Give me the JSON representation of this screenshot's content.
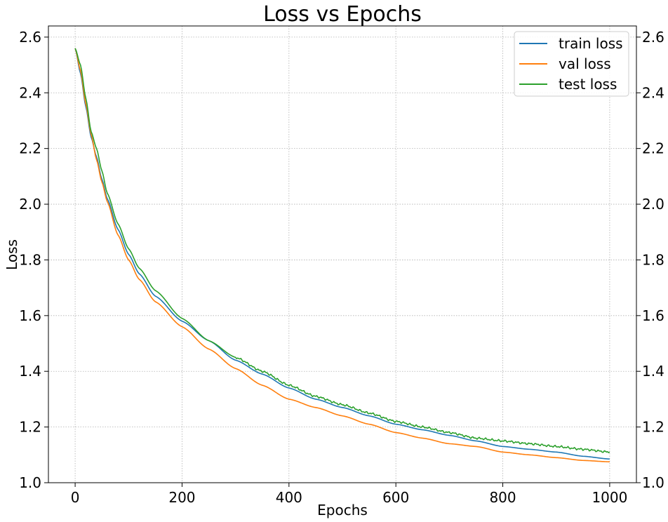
{
  "chart_data": {
    "type": "line",
    "title": "Loss vs Epochs",
    "xlabel": "Epochs",
    "ylabel": "Loss",
    "xlim": [
      -50,
      1050
    ],
    "ylim": [
      1.0,
      2.64
    ],
    "xticks": [
      0,
      200,
      400,
      600,
      800,
      1000
    ],
    "yticks": [
      1.0,
      1.2,
      1.4,
      1.6,
      1.8,
      2.0,
      2.2,
      2.4,
      2.6
    ],
    "ytick_labels": [
      "1.0",
      "1.2",
      "1.4",
      "1.6",
      "1.8",
      "2.0",
      "2.2",
      "2.4",
      "2.6"
    ],
    "right_axis_mirror": true,
    "grid": true,
    "legend_position": "top-right",
    "series": [
      {
        "name": "train loss",
        "color": "#1f77b4",
        "x": [
          0,
          10,
          20,
          30,
          40,
          50,
          60,
          80,
          100,
          120,
          150,
          200,
          250,
          300,
          350,
          400,
          450,
          500,
          550,
          600,
          650,
          700,
          750,
          800,
          850,
          900,
          950,
          1000
        ],
        "values": [
          2.56,
          2.47,
          2.35,
          2.24,
          2.17,
          2.09,
          2.02,
          1.91,
          1.82,
          1.75,
          1.67,
          1.58,
          1.51,
          1.44,
          1.39,
          1.34,
          1.3,
          1.27,
          1.24,
          1.21,
          1.19,
          1.17,
          1.15,
          1.13,
          1.12,
          1.11,
          1.095,
          1.085
        ]
      },
      {
        "name": "val loss",
        "color": "#ff7f0e",
        "x": [
          0,
          10,
          20,
          30,
          40,
          50,
          60,
          80,
          100,
          120,
          150,
          200,
          250,
          300,
          350,
          400,
          450,
          500,
          550,
          600,
          650,
          700,
          750,
          800,
          850,
          900,
          950,
          1000
        ],
        "values": [
          2.56,
          2.48,
          2.36,
          2.25,
          2.16,
          2.08,
          2.01,
          1.89,
          1.8,
          1.73,
          1.65,
          1.56,
          1.48,
          1.41,
          1.35,
          1.3,
          1.27,
          1.24,
          1.21,
          1.18,
          1.16,
          1.14,
          1.13,
          1.11,
          1.1,
          1.09,
          1.08,
          1.075
        ]
      },
      {
        "name": "test loss",
        "color": "#2ca02c",
        "x": [
          0,
          10,
          20,
          30,
          40,
          50,
          60,
          80,
          100,
          120,
          150,
          200,
          250,
          300,
          350,
          400,
          450,
          500,
          550,
          600,
          650,
          700,
          750,
          800,
          850,
          900,
          950,
          1000
        ],
        "values": [
          2.56,
          2.5,
          2.38,
          2.26,
          2.2,
          2.12,
          2.04,
          1.93,
          1.84,
          1.77,
          1.69,
          1.59,
          1.51,
          1.45,
          1.4,
          1.35,
          1.31,
          1.28,
          1.25,
          1.22,
          1.2,
          1.18,
          1.16,
          1.15,
          1.14,
          1.13,
          1.12,
          1.11
        ]
      }
    ]
  }
}
